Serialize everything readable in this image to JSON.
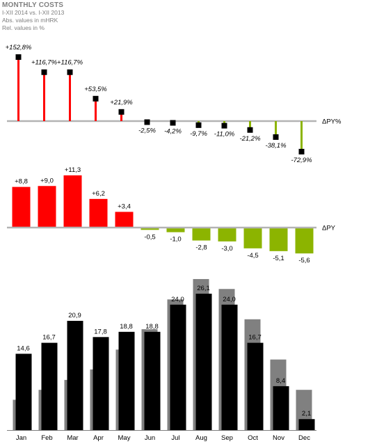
{
  "header": {
    "title": "MONTHLY COSTS",
    "period": "I-XII 2014 vs. I-XII 2013",
    "abs_unit": "Abs. values in mHRK",
    "rel_unit": "Rel. values in %"
  },
  "chart_data": [
    {
      "type": "pin",
      "name": "relative-deviation",
      "axis_label": "ΔPY%",
      "categories": [
        "Jan",
        "Feb",
        "Mar",
        "Apr",
        "May",
        "Jun",
        "Jul",
        "Aug",
        "Sep",
        "Oct",
        "Nov",
        "Dec"
      ],
      "values": [
        152.8,
        116.7,
        116.7,
        53.5,
        21.9,
        -2.5,
        -4.2,
        -9.7,
        -11.0,
        -21.2,
        -38.1,
        -72.9
      ],
      "labels": [
        "+152,8%",
        "+116,7%",
        "+116,7%",
        "+53,5%",
        "+21,9%",
        "-2,5%",
        "-4,2%",
        "-9,7%",
        "-11,0%",
        "-21,2%",
        "-38,1%",
        "-72,9%"
      ],
      "colors": {
        "positive": "#ff0000",
        "negative": "#8cb400",
        "axis": "#b3b3b3",
        "marker": "#000000"
      }
    },
    {
      "type": "bar",
      "name": "absolute-deviation",
      "axis_label": "ΔPY",
      "categories": [
        "Jan",
        "Feb",
        "Mar",
        "Apr",
        "May",
        "Jun",
        "Jul",
        "Aug",
        "Sep",
        "Oct",
        "Nov",
        "Dec"
      ],
      "values": [
        8.8,
        9.0,
        11.3,
        6.2,
        3.4,
        -0.5,
        -1.0,
        -2.8,
        -3.0,
        -4.5,
        -5.1,
        -5.6
      ],
      "labels": [
        "+8,8",
        "+9,0",
        "+11,3",
        "+6,2",
        "+3,4",
        "-0,5",
        "-1,0",
        "-2,8",
        "-3,0",
        "-4,5",
        "-5,1",
        "-5,6"
      ],
      "colors": {
        "positive": "#ff0000",
        "negative": "#8cb400",
        "axis": "#b3b3b3"
      }
    },
    {
      "type": "bar",
      "name": "monthly-costs",
      "categories": [
        "Jan",
        "Feb",
        "Mar",
        "Apr",
        "May",
        "Jun",
        "Jul",
        "Aug",
        "Sep",
        "Oct",
        "Nov",
        "Dec"
      ],
      "series": [
        {
          "values": [
            5.8,
            7.7,
            9.6,
            11.6,
            15.4,
            19.3,
            25.0,
            28.9,
            27.0,
            21.2,
            13.5,
            7.7
          ]
        },
        {
          "values": [
            14.6,
            16.7,
            20.9,
            17.8,
            18.8,
            18.8,
            24.0,
            26.1,
            24.0,
            16.7,
            8.4,
            2.1
          ]
        }
      ],
      "labels": [
        "14,6",
        "16,7",
        "20,9",
        "17,8",
        "18,8",
        "18,8",
        "24,0",
        "26,1",
        "24,0",
        "16,7",
        "8,4",
        "2,1"
      ],
      "ylim": [
        0,
        30
      ],
      "colors": {
        "previous": "#808080",
        "current": "#000000"
      }
    }
  ]
}
